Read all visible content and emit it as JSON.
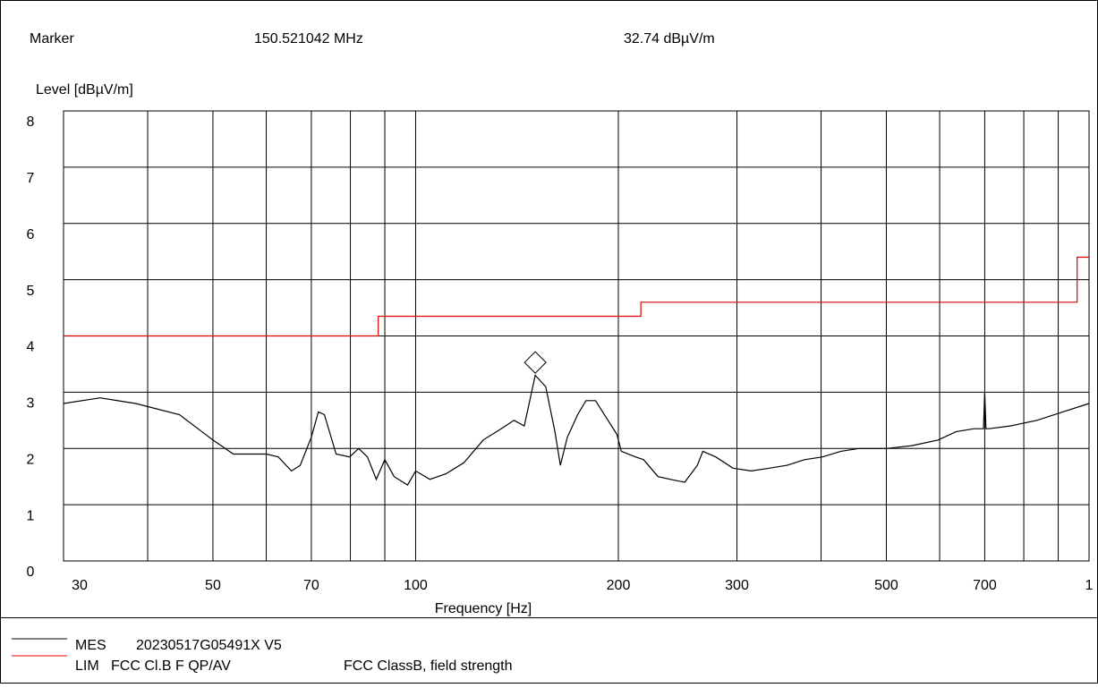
{
  "chart_data": {
    "type": "line",
    "marker_label": "Marker",
    "marker_frequency": "150.521042 MHz",
    "marker_level": "32.74 dBµV/m",
    "marker": {
      "x": 150.521042,
      "y": 3.274
    },
    "ylabel": "Level [dBµV/m]",
    "xlabel": "Frequency [Hz]",
    "xscale": "log",
    "xlim": [
      30,
      1000
    ],
    "ylim": [
      0,
      8
    ],
    "xticks": [
      30,
      50,
      70,
      100,
      200,
      300,
      500,
      700,
      {
        "value": 1000,
        "label": "1"
      }
    ],
    "xminor": [
      40,
      60,
      80,
      90,
      400,
      600,
      800,
      900
    ],
    "yticks": [
      0,
      1,
      2,
      3,
      4,
      5,
      6,
      7,
      8
    ],
    "grid": true,
    "series": [
      {
        "name": "MES",
        "description": "20230517G05491X V5",
        "color": "#000000",
        "x": [
          30,
          34,
          38.4,
          44.6,
          50,
          53.6,
          60,
          62.5,
          65.4,
          67.4,
          70,
          71.7,
          73.2,
          76.2,
          79.8,
          82.3,
          84.8,
          87.4,
          90,
          92.9,
          97.3,
          100,
          105,
          111,
          118,
          126,
          134,
          140,
          145,
          150.5,
          156,
          161,
          164,
          168,
          174,
          179,
          185,
          193,
          199,
          202,
          212,
          218,
          229,
          239,
          251,
          262,
          267,
          279,
          296,
          315,
          335,
          356,
          378,
          402,
          428,
          455,
          500,
          546,
          597,
          635,
          675,
          697,
          700,
          703,
          710,
          764,
          837,
          914,
          1000
        ],
        "values": [
          2.8,
          2.9,
          2.8,
          2.6,
          2.15,
          1.9,
          1.9,
          1.85,
          1.6,
          1.7,
          2.2,
          2.65,
          2.6,
          1.9,
          1.85,
          2.0,
          1.85,
          1.45,
          1.8,
          1.5,
          1.35,
          1.6,
          1.45,
          1.55,
          1.75,
          2.15,
          2.35,
          2.5,
          2.4,
          3.3,
          3.1,
          2.3,
          1.7,
          2.2,
          2.6,
          2.85,
          2.85,
          2.5,
          2.25,
          1.95,
          1.85,
          1.8,
          1.5,
          1.45,
          1.4,
          1.7,
          1.95,
          1.85,
          1.65,
          1.6,
          1.65,
          1.7,
          1.8,
          1.85,
          1.95,
          2.0,
          2.0,
          2.05,
          2.15,
          2.3,
          2.35,
          2.35,
          3.0,
          2.35,
          2.35,
          2.4,
          2.5,
          2.65,
          2.8
        ]
      },
      {
        "name": "LIM",
        "description": "FCC Cl.B F QP/AV",
        "note": "FCC ClassB, field strength",
        "color": "#e00000",
        "x": [
          30,
          88,
          88,
          216,
          216,
          960,
          960,
          1000
        ],
        "values": [
          4,
          4,
          4.35,
          4.35,
          4.6,
          4.6,
          5.4,
          5.4
        ]
      }
    ]
  }
}
